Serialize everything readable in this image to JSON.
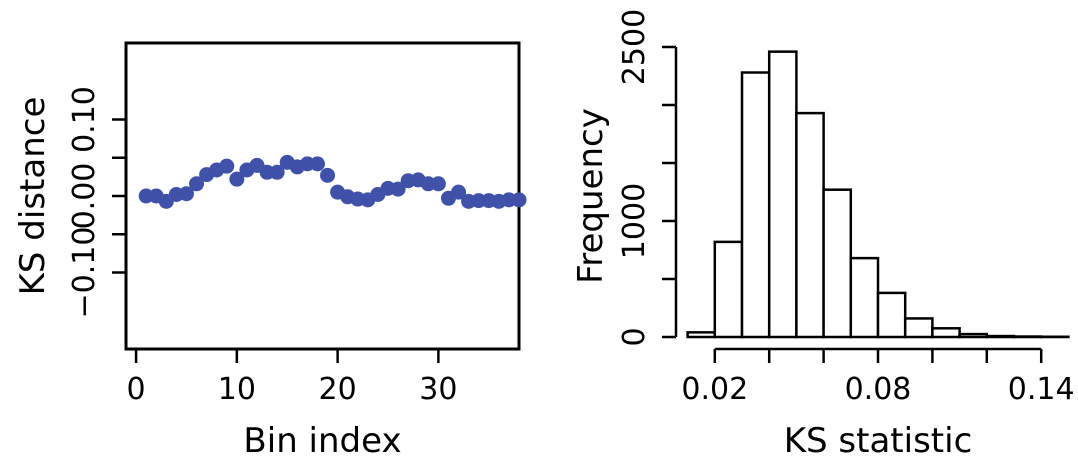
{
  "chart_data": [
    {
      "type": "scatter",
      "title": "",
      "xlabel": "Bin index",
      "ylabel": "KS distance",
      "xlim": [
        -1,
        38
      ],
      "ylim": [
        -0.2,
        0.2
      ],
      "xticks": [
        0,
        10,
        20,
        30
      ],
      "xtick_labels": [
        "0",
        "10",
        "20",
        "30"
      ],
      "yticks": [
        -0.1,
        -0.05,
        0.0,
        0.05,
        0.1
      ],
      "ytick_labels": [
        "−0.10",
        "",
        "0.00",
        "",
        "0.10"
      ],
      "marker_color": "#3f51a8",
      "series": [
        {
          "x": [
            1,
            2,
            3,
            4,
            5,
            6,
            7,
            8,
            9,
            10,
            11,
            12,
            13,
            14,
            15,
            16,
            17,
            18,
            19,
            20,
            21,
            22,
            23,
            24,
            25,
            26,
            27,
            28,
            29,
            30,
            31,
            32,
            33,
            34,
            35,
            36,
            37,
            38
          ],
          "y": [
            0.0,
            0.0,
            -0.007,
            0.002,
            0.003,
            0.016,
            0.028,
            0.034,
            0.039,
            0.022,
            0.034,
            0.04,
            0.031,
            0.031,
            0.044,
            0.038,
            0.042,
            0.042,
            0.027,
            0.005,
            -0.001,
            -0.004,
            -0.005,
            0.002,
            0.01,
            0.009,
            0.02,
            0.021,
            0.016,
            0.016,
            -0.003,
            0.005,
            -0.007,
            -0.006,
            -0.006,
            -0.007,
            -0.005,
            -0.005
          ]
        }
      ]
    },
    {
      "type": "bar",
      "title": "",
      "xlabel": "KS statistic",
      "ylabel": "Frequency",
      "xlim": [
        0.005,
        0.155
      ],
      "ylim": [
        0,
        2500
      ],
      "xticks": [
        0.02,
        0.04,
        0.06,
        0.08,
        0.1,
        0.12,
        0.14
      ],
      "xtick_labels": [
        "0.02",
        "",
        "",
        "0.08",
        "",
        "",
        "0.14"
      ],
      "yticks": [
        0,
        500,
        1000,
        1500,
        2000,
        2500
      ],
      "ytick_labels": [
        "0",
        "",
        "1000",
        "",
        "",
        "2500"
      ],
      "bin_edges": [
        0.01,
        0.02,
        0.03,
        0.04,
        0.05,
        0.06,
        0.07,
        0.08,
        0.09,
        0.1,
        0.11,
        0.12,
        0.13,
        0.14,
        0.15
      ],
      "values": [
        40,
        820,
        2280,
        2460,
        1930,
        1270,
        680,
        380,
        160,
        75,
        25,
        8,
        4,
        2
      ]
    }
  ]
}
